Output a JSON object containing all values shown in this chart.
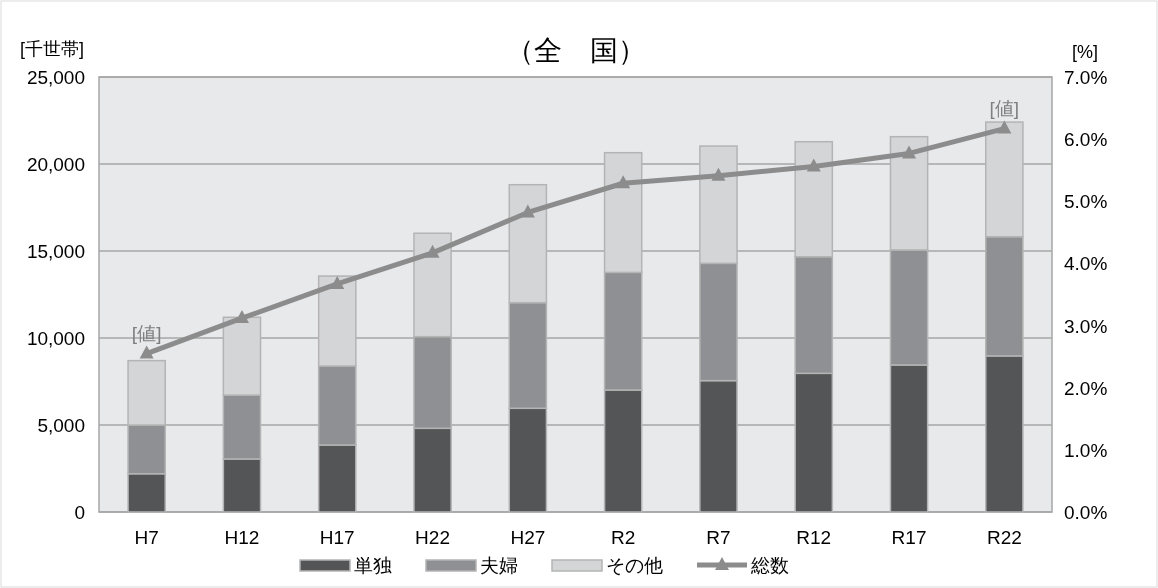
{
  "chart_data": {
    "type": "bar",
    "title": "（全　国）",
    "ylabel": "[千世帯]",
    "y2label": "[%]",
    "categories": [
      "H7",
      "H12",
      "H17",
      "H22",
      "H27",
      "R2",
      "R7",
      "R12",
      "R17",
      "R22"
    ],
    "stacked": true,
    "legend": "bottom",
    "grid": "y",
    "marker": "triangle",
    "series": [
      {
        "name": "単独",
        "color": "#545557",
        "values": [
          2200,
          3050,
          3850,
          4810,
          5960,
          7010,
          7550,
          7970,
          8450,
          8970
        ]
      },
      {
        "name": "夫婦",
        "color": "#8f9093",
        "values": [
          2800,
          3670,
          4540,
          5270,
          6070,
          6760,
          6740,
          6700,
          6610,
          6850
        ]
      },
      {
        "name": "その他",
        "color": "#d4d5d7",
        "values": [
          3700,
          4470,
          5170,
          5940,
          6780,
          6880,
          6740,
          6610,
          6510,
          6590
        ]
      },
      {
        "name": "総数",
        "type": "line",
        "axis": "y2",
        "color": "#8c8c8c",
        "values": [
          2.55,
          3.12,
          3.67,
          4.17,
          4.82,
          5.29,
          5.41,
          5.56,
          5.77,
          6.17
        ]
      }
    ],
    "ylim": [
      0,
      25000
    ],
    "yticks": [
      0,
      {
        "value": 5000,
        "label": "5,000"
      },
      {
        "value": 10000,
        "label": "10,000"
      },
      {
        "value": 15000,
        "label": "15,000"
      },
      {
        "value": 20000,
        "label": "20,000"
      },
      {
        "value": 25000,
        "label": "25,000"
      }
    ],
    "y2lim": [
      0,
      7
    ],
    "y2ticks": [
      {
        "value": 0,
        "label": "0.0%"
      },
      {
        "value": 1,
        "label": "1.0%"
      },
      {
        "value": 2,
        "label": "2.0%"
      },
      {
        "value": 3,
        "label": "3.0%"
      },
      {
        "value": 4,
        "label": "4.0%"
      },
      {
        "value": 5,
        "label": "5.0%"
      },
      {
        "value": 6,
        "label": "6.0%"
      },
      {
        "value": 7,
        "label": "7.0%"
      }
    ],
    "annotations": [
      "[値]",
      "[値]"
    ]
  }
}
